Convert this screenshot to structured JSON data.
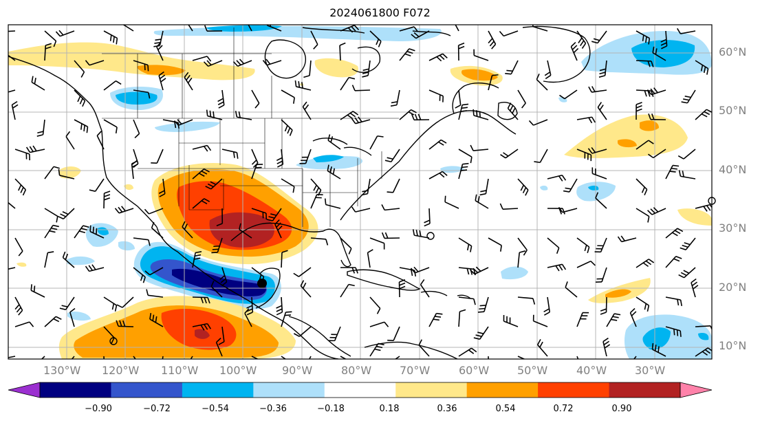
{
  "title": "2024061800 F072",
  "latitude_labels": [
    "60°N",
    "50°N",
    "40°N",
    "30°N",
    "20°N",
    "10°N"
  ],
  "longitude_labels": [
    "130°W",
    "120°W",
    "110°W",
    "100°W",
    "90°W",
    "80°W",
    "70°W",
    "60°W",
    "50°W",
    "40°W",
    "30°W"
  ],
  "colorbar": {
    "tick_labels": [
      "−0.90",
      "−0.72",
      "−0.54",
      "−0.36",
      "−0.18",
      "0.18",
      "0.36",
      "0.54",
      "0.72",
      "0.90"
    ],
    "colors": [
      "#9b30d0",
      "#000080",
      "#3455cc",
      "#00b4f0",
      "#aee0fa",
      "#ffffff",
      "#ffe88a",
      "#ffa000",
      "#ff4000",
      "#b22222",
      "#ff82aa"
    ]
  },
  "map_colors": {
    "land_outline": "#000000",
    "grid": "#b4b4b4",
    "background": "#ffffff"
  }
}
